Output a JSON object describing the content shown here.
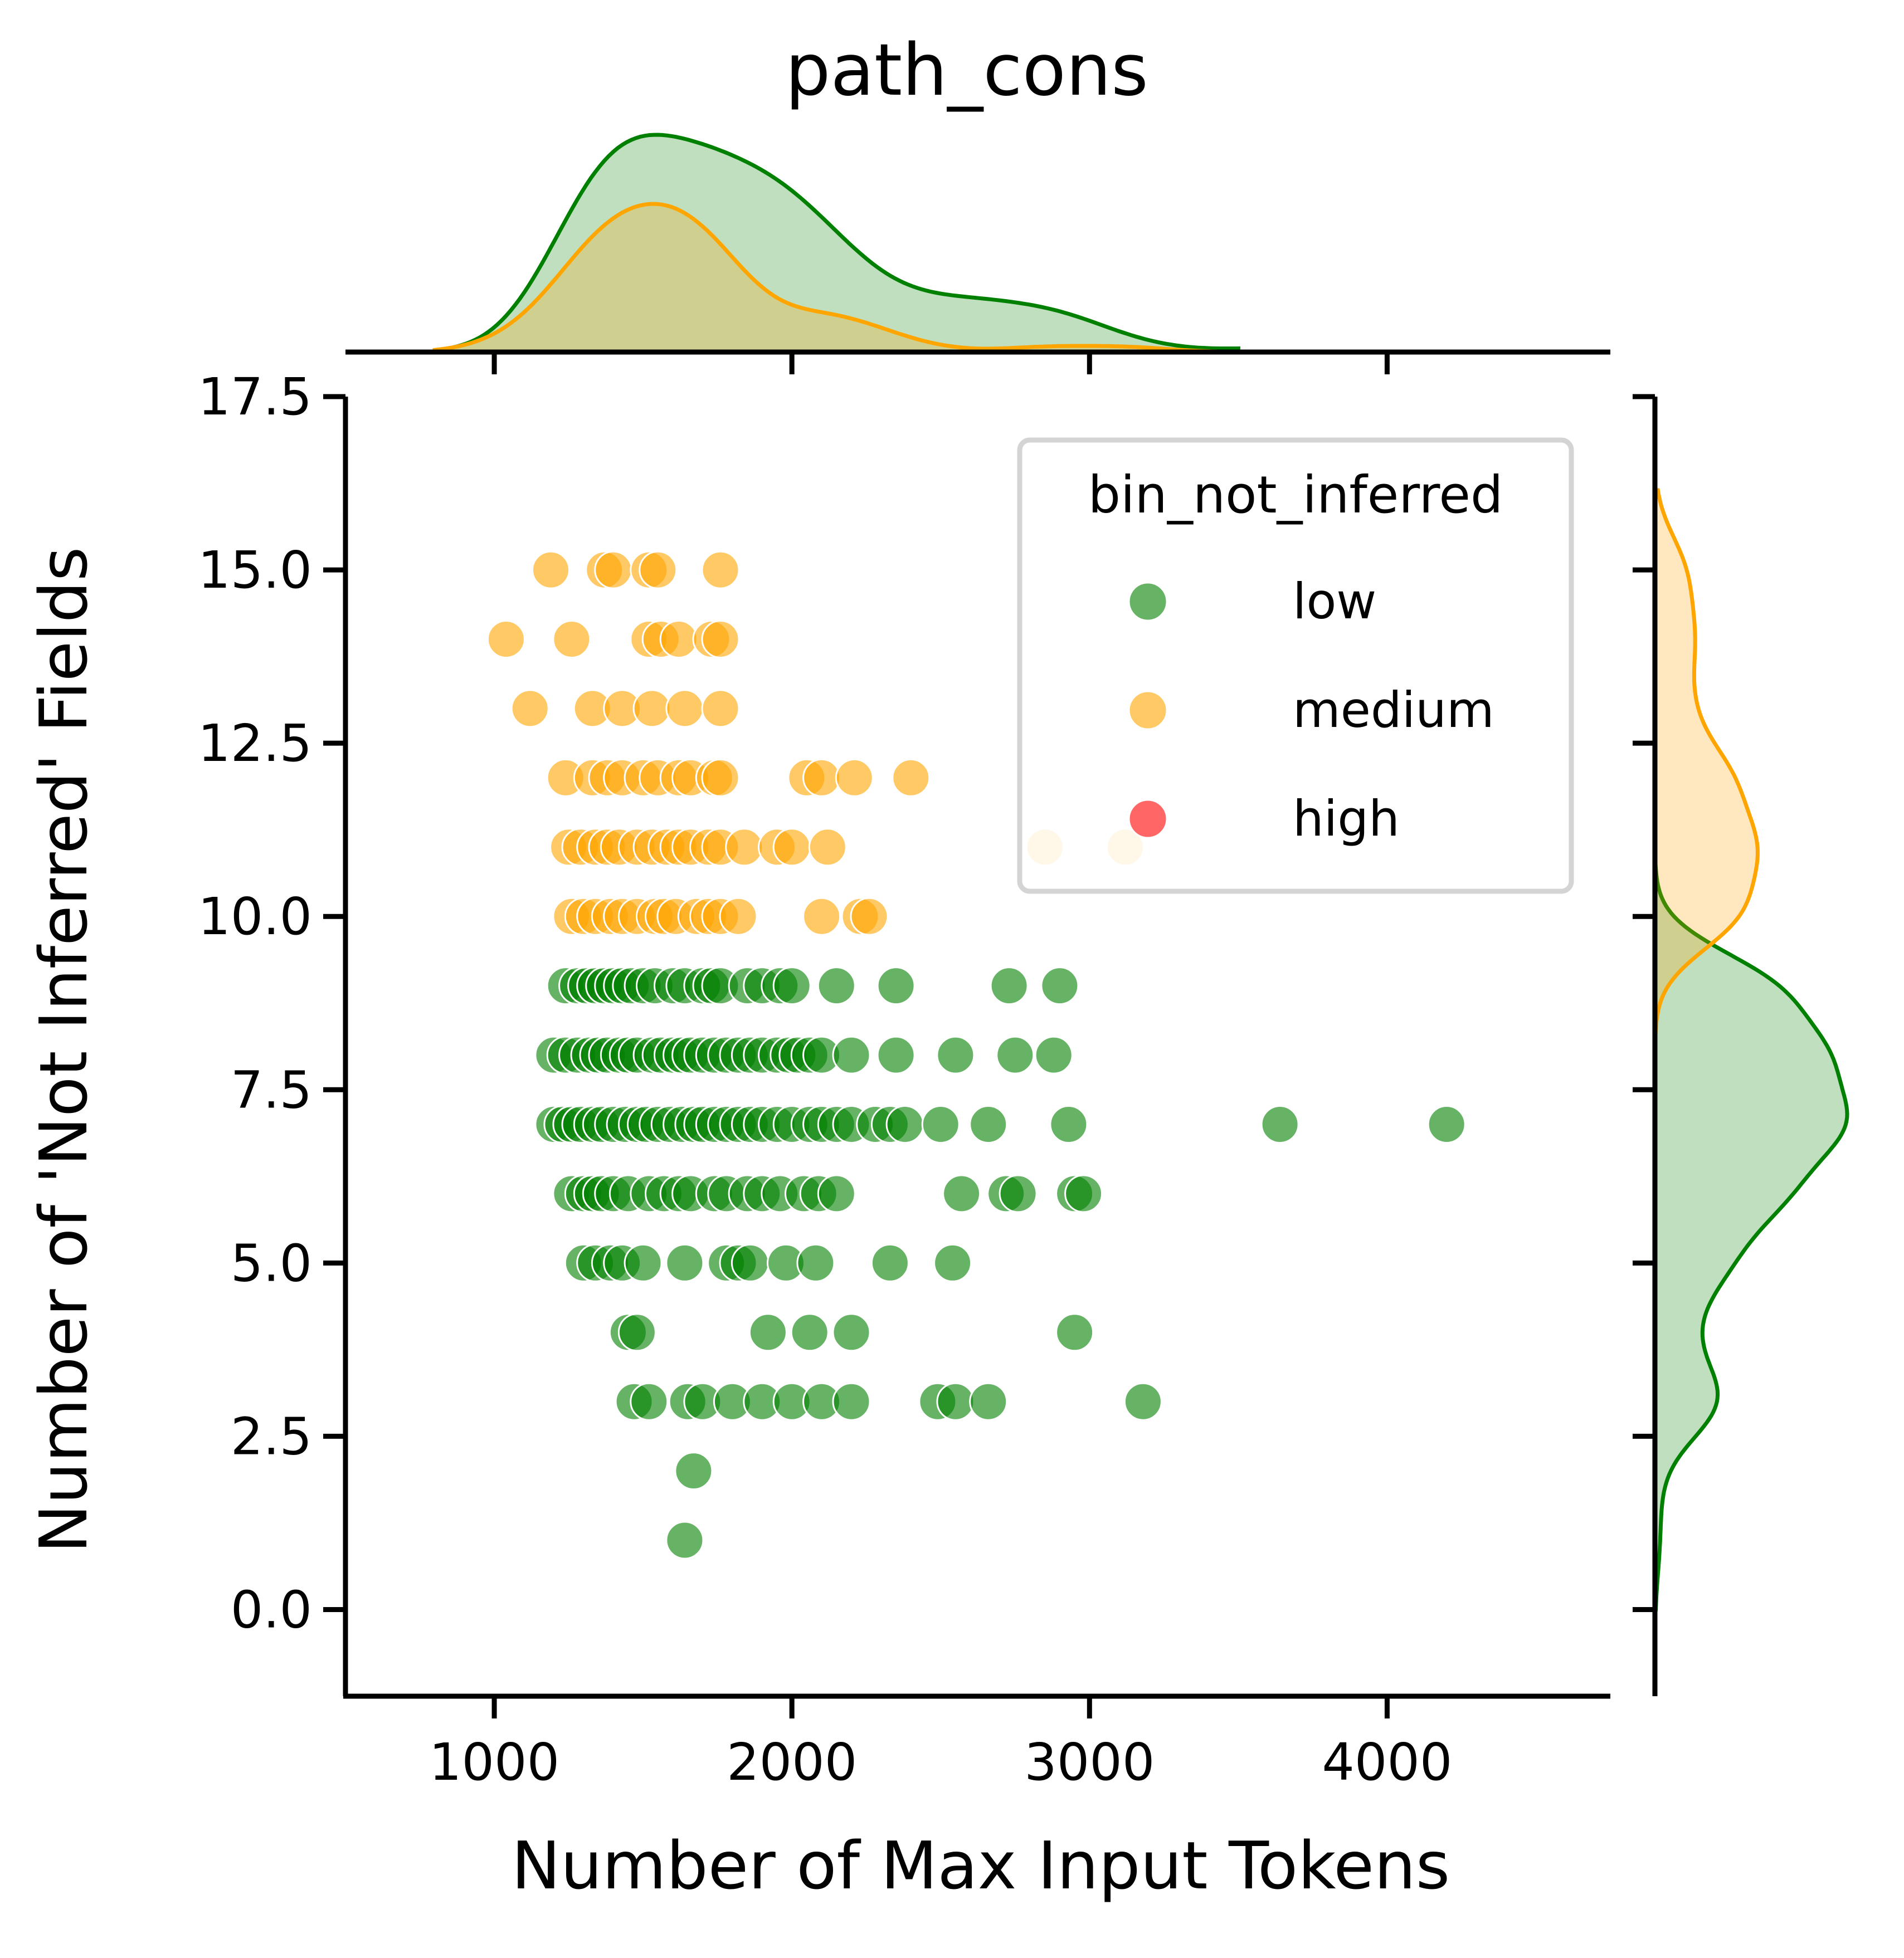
{
  "chart_data": {
    "type": "scatter",
    "title": "path_cons",
    "xlabel": "Number of Max Input Tokens",
    "ylabel": "Number of 'Not Inferred' Fields",
    "xlim": [
      500,
      4750
    ],
    "ylim": [
      -1.25,
      17.5
    ],
    "xticks": [
      1000,
      2000,
      3000,
      4000
    ],
    "xtick_labels": [
      "1000",
      "2000",
      "3000",
      "4000"
    ],
    "yticks": [
      0,
      2.5,
      5,
      7.5,
      10,
      12.5,
      15,
      17.5
    ],
    "ytick_labels": [
      "0.0",
      "2.5",
      "5.0",
      "7.5",
      "10.0",
      "12.5",
      "15.0",
      "17.5"
    ],
    "grid": false,
    "legend": {
      "title": "bin_not_inferred",
      "position": "top-right",
      "entries": [
        {
          "label": "low",
          "color": "#008000"
        },
        {
          "label": "medium",
          "color": "#FFA500"
        },
        {
          "label": "high",
          "color": "#FF0000"
        }
      ]
    },
    "marginals": {
      "top": "kde of x per series (filled, green and orange)",
      "right": "kde of y per series (filled, green and orange)"
    },
    "series": [
      {
        "name": "low",
        "color": "#008000",
        "points": [
          [
            1240,
            9
          ],
          [
            1280,
            9
          ],
          [
            1310,
            9
          ],
          [
            1340,
            9
          ],
          [
            1370,
            9
          ],
          [
            1400,
            9
          ],
          [
            1430,
            9
          ],
          [
            1460,
            9
          ],
          [
            1500,
            9
          ],
          [
            1540,
            9
          ],
          [
            1600,
            9
          ],
          [
            1640,
            9
          ],
          [
            1700,
            9
          ],
          [
            1730,
            9
          ],
          [
            1760,
            9
          ],
          [
            1850,
            9
          ],
          [
            1900,
            9
          ],
          [
            1960,
            9
          ],
          [
            2000,
            9
          ],
          [
            2150,
            9
          ],
          [
            2350,
            9
          ],
          [
            2730,
            9
          ],
          [
            2900,
            9
          ],
          [
            1200,
            8
          ],
          [
            1240,
            8
          ],
          [
            1280,
            8
          ],
          [
            1320,
            8
          ],
          [
            1350,
            8
          ],
          [
            1380,
            8
          ],
          [
            1420,
            8
          ],
          [
            1450,
            8
          ],
          [
            1480,
            8
          ],
          [
            1530,
            8
          ],
          [
            1560,
            8
          ],
          [
            1600,
            8
          ],
          [
            1630,
            8
          ],
          [
            1660,
            8
          ],
          [
            1700,
            8
          ],
          [
            1740,
            8
          ],
          [
            1780,
            8
          ],
          [
            1820,
            8
          ],
          [
            1860,
            8
          ],
          [
            1900,
            8
          ],
          [
            1950,
            8
          ],
          [
            1990,
            8
          ],
          [
            2020,
            8
          ],
          [
            2060,
            8
          ],
          [
            2100,
            8
          ],
          [
            2200,
            8
          ],
          [
            2350,
            8
          ],
          [
            2550,
            8
          ],
          [
            2750,
            8
          ],
          [
            2880,
            8
          ],
          [
            1200,
            7
          ],
          [
            1230,
            7
          ],
          [
            1260,
            7
          ],
          [
            1290,
            7
          ],
          [
            1330,
            7
          ],
          [
            1360,
            7
          ],
          [
            1400,
            7
          ],
          [
            1440,
            7
          ],
          [
            1480,
            7
          ],
          [
            1510,
            7
          ],
          [
            1550,
            7
          ],
          [
            1590,
            7
          ],
          [
            1630,
            7
          ],
          [
            1670,
            7
          ],
          [
            1700,
            7
          ],
          [
            1740,
            7
          ],
          [
            1780,
            7
          ],
          [
            1820,
            7
          ],
          [
            1860,
            7
          ],
          [
            1900,
            7
          ],
          [
            1950,
            7
          ],
          [
            2000,
            7
          ],
          [
            2060,
            7
          ],
          [
            2100,
            7
          ],
          [
            2150,
            7
          ],
          [
            2200,
            7
          ],
          [
            2280,
            7
          ],
          [
            2330,
            7
          ],
          [
            2380,
            7
          ],
          [
            2500,
            7
          ],
          [
            2660,
            7
          ],
          [
            2930,
            7
          ],
          [
            3640,
            7
          ],
          [
            4200,
            7
          ],
          [
            1260,
            6
          ],
          [
            1300,
            6
          ],
          [
            1330,
            6
          ],
          [
            1360,
            6
          ],
          [
            1400,
            6
          ],
          [
            1450,
            6
          ],
          [
            1520,
            6
          ],
          [
            1570,
            6
          ],
          [
            1620,
            6
          ],
          [
            1660,
            6
          ],
          [
            1740,
            6
          ],
          [
            1780,
            6
          ],
          [
            1850,
            6
          ],
          [
            1900,
            6
          ],
          [
            1960,
            6
          ],
          [
            2040,
            6
          ],
          [
            2090,
            6
          ],
          [
            2150,
            6
          ],
          [
            2570,
            6
          ],
          [
            2720,
            6
          ],
          [
            2760,
            6
          ],
          [
            2950,
            6
          ],
          [
            2980,
            6
          ],
          [
            1300,
            5
          ],
          [
            1340,
            5
          ],
          [
            1390,
            5
          ],
          [
            1430,
            5
          ],
          [
            1500,
            5
          ],
          [
            1640,
            5
          ],
          [
            1780,
            5
          ],
          [
            1820,
            5
          ],
          [
            1860,
            5
          ],
          [
            1980,
            5
          ],
          [
            2080,
            5
          ],
          [
            2330,
            5
          ],
          [
            2540,
            5
          ],
          [
            1450,
            4
          ],
          [
            1480,
            4
          ],
          [
            1920,
            4
          ],
          [
            2060,
            4
          ],
          [
            2200,
            4
          ],
          [
            2950,
            4
          ],
          [
            1470,
            3
          ],
          [
            1520,
            3
          ],
          [
            1650,
            3
          ],
          [
            1700,
            3
          ],
          [
            1800,
            3
          ],
          [
            1900,
            3
          ],
          [
            2000,
            3
          ],
          [
            2100,
            3
          ],
          [
            2200,
            3
          ],
          [
            2490,
            3
          ],
          [
            2550,
            3
          ],
          [
            2660,
            3
          ],
          [
            3180,
            3
          ],
          [
            1670,
            2
          ],
          [
            1640,
            1
          ]
        ]
      },
      {
        "name": "medium",
        "color": "#FFA500",
        "points": [
          [
            1190,
            15
          ],
          [
            1370,
            15
          ],
          [
            1400,
            15
          ],
          [
            1520,
            15
          ],
          [
            1550,
            15
          ],
          [
            1760,
            15
          ],
          [
            1040,
            14
          ],
          [
            1260,
            14
          ],
          [
            1520,
            14
          ],
          [
            1560,
            14
          ],
          [
            1620,
            14
          ],
          [
            1730,
            14
          ],
          [
            1760,
            14
          ],
          [
            1120,
            13
          ],
          [
            1330,
            13
          ],
          [
            1430,
            13
          ],
          [
            1530,
            13
          ],
          [
            1640,
            13
          ],
          [
            1760,
            13
          ],
          [
            1240,
            12
          ],
          [
            1330,
            12
          ],
          [
            1380,
            12
          ],
          [
            1430,
            12
          ],
          [
            1500,
            12
          ],
          [
            1550,
            12
          ],
          [
            1620,
            12
          ],
          [
            1660,
            12
          ],
          [
            1740,
            12
          ],
          [
            1760,
            12
          ],
          [
            2050,
            12
          ],
          [
            2100,
            12
          ],
          [
            2210,
            12
          ],
          [
            2400,
            12
          ],
          [
            1250,
            11
          ],
          [
            1290,
            11
          ],
          [
            1340,
            11
          ],
          [
            1380,
            11
          ],
          [
            1420,
            11
          ],
          [
            1480,
            11
          ],
          [
            1530,
            11
          ],
          [
            1580,
            11
          ],
          [
            1620,
            11
          ],
          [
            1660,
            11
          ],
          [
            1720,
            11
          ],
          [
            1760,
            11
          ],
          [
            1840,
            11
          ],
          [
            1950,
            11
          ],
          [
            2000,
            11
          ],
          [
            2120,
            11
          ],
          [
            2850,
            11
          ],
          [
            3120,
            11
          ],
          [
            1260,
            10
          ],
          [
            1300,
            10
          ],
          [
            1340,
            10
          ],
          [
            1390,
            10
          ],
          [
            1430,
            10
          ],
          [
            1480,
            10
          ],
          [
            1540,
            10
          ],
          [
            1570,
            10
          ],
          [
            1610,
            10
          ],
          [
            1680,
            10
          ],
          [
            1720,
            10
          ],
          [
            1760,
            10
          ],
          [
            1820,
            10
          ],
          [
            2100,
            10
          ],
          [
            2230,
            10
          ],
          [
            2260,
            10
          ]
        ]
      },
      {
        "name": "high",
        "color": "#FF0000",
        "points": []
      }
    ]
  }
}
